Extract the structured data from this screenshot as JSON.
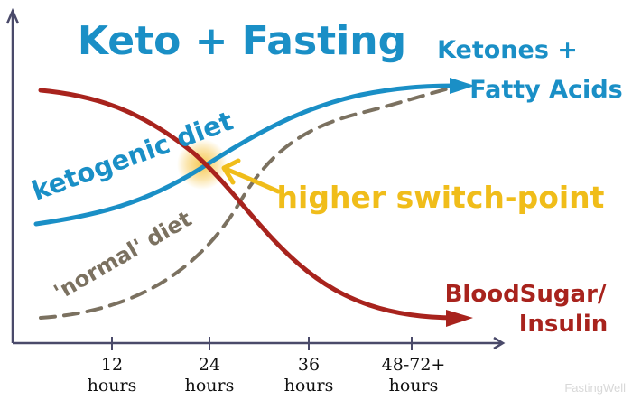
{
  "chart_data": {
    "type": "line",
    "title": "Keto + Fasting",
    "xlabel": "",
    "ylabel": "",
    "categories": [
      {
        "line1": "12",
        "line2": "hours"
      },
      {
        "line1": "24",
        "line2": "hours"
      },
      {
        "line1": "36",
        "line2": "hours"
      },
      {
        "line1": "48-72+",
        "line2": "hours"
      }
    ],
    "series": [
      {
        "name": "ketogenic diet",
        "color": "#1a8fc6"
      },
      {
        "name": "'normal' diet",
        "color": "#7b7160"
      },
      {
        "name": "BloodSugar/ Insulin",
        "color": "#a8231d"
      }
    ],
    "annotations": {
      "ketones_line1": "Ketones +",
      "ketones_line2": "Fatty Acids",
      "blood_line1": "BloodSugar/",
      "blood_line2": "Insulin",
      "switch_point": "higher switch-point",
      "switch_color": "#f0bd1a"
    },
    "watermark": "FastingWell",
    "grid": false
  }
}
